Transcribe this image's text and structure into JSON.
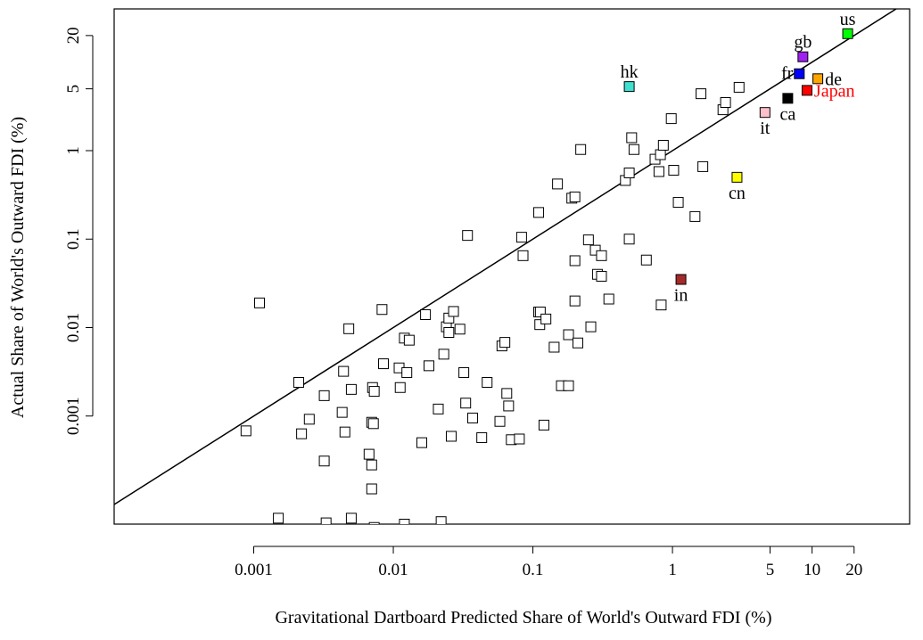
{
  "chart_data": {
    "type": "scatter",
    "title": "",
    "xlabel": "Gravitational Dartboard Predicted Share of World's Outward FDI (%)",
    "ylabel": "Actual Share of World's Outward FDI  (%)",
    "x_scale": "log",
    "y_scale": "log",
    "xlim": [
      0.0001,
      50
    ],
    "ylim": [
      6e-05,
      40
    ],
    "x_ticks": [
      {
        "value": 0.001,
        "label": "0.001"
      },
      {
        "value": 0.01,
        "label": "0.01"
      },
      {
        "value": 0.1,
        "label": "0.1"
      },
      {
        "value": 1,
        "label": "1"
      },
      {
        "value": 5,
        "label": "5"
      },
      {
        "value": 10,
        "label": "10"
      },
      {
        "value": 20,
        "label": "20"
      }
    ],
    "y_ticks": [
      {
        "value": 0.001,
        "label": "0.001"
      },
      {
        "value": 0.01,
        "label": "0.01"
      },
      {
        "value": 0.1,
        "label": "0.1"
      },
      {
        "value": 1,
        "label": "1"
      },
      {
        "value": 5,
        "label": "5"
      },
      {
        "value": 20,
        "label": "20"
      }
    ],
    "reference_line": "y = x",
    "grid": false,
    "highlighted_points": [
      {
        "label": "us",
        "x": 18.0,
        "y": 21.0,
        "color": "#00ff00",
        "label_color": "#000000",
        "label_pos": "above"
      },
      {
        "label": "gb",
        "x": 8.6,
        "y": 11.5,
        "color": "#a020f0",
        "label_color": "#000000",
        "label_pos": "above"
      },
      {
        "label": "fr",
        "x": 8.1,
        "y": 7.4,
        "color": "#0000ff",
        "label_color": "#000000",
        "label_pos": "left"
      },
      {
        "label": "de",
        "x": 11.0,
        "y": 6.5,
        "color": "#ffa500",
        "label_color": "#000000",
        "label_pos": "right"
      },
      {
        "label": "Japan",
        "x": 9.2,
        "y": 4.8,
        "color": "#ff0000",
        "label_color": "#ff0000",
        "label_pos": "right"
      },
      {
        "label": "ca",
        "x": 6.7,
        "y": 3.9,
        "color": "#000000",
        "label_color": "#000000",
        "label_pos": "below"
      },
      {
        "label": "it",
        "x": 4.6,
        "y": 2.7,
        "color": "#ffc0cb",
        "label_color": "#000000",
        "label_pos": "below"
      },
      {
        "label": "hk",
        "x": 0.49,
        "y": 5.3,
        "color": "#40e0d0",
        "label_color": "#000000",
        "label_pos": "above"
      },
      {
        "label": "cn",
        "x": 2.9,
        "y": 0.5,
        "color": "#ffff00",
        "label_color": "#000000",
        "label_pos": "below"
      },
      {
        "label": "in",
        "x": 1.15,
        "y": 0.035,
        "color": "#a52a2a",
        "label_color": "#000000",
        "label_pos": "below"
      }
    ],
    "other_points": [
      [
        0.00088,
        0.00068
      ],
      [
        0.0011,
        0.019
      ],
      [
        0.0021,
        0.0024
      ],
      [
        0.0022,
        0.00063
      ],
      [
        0.0025,
        0.00092
      ],
      [
        0.0032,
        0.0017
      ],
      [
        0.0032,
        0.00031
      ],
      [
        0.0015,
        7e-05
      ],
      [
        0.0033,
        6.2e-05
      ],
      [
        0.0043,
        0.0011
      ],
      [
        0.0044,
        0.0032
      ],
      [
        0.0045,
        0.00066
      ],
      [
        0.0048,
        0.0097
      ],
      [
        0.005,
        0.002
      ],
      [
        0.005,
        7e-05
      ],
      [
        0.0067,
        0.00037
      ],
      [
        0.007,
        0.00085
      ],
      [
        0.007,
        0.00028
      ],
      [
        0.007,
        0.00015
      ],
      [
        0.0071,
        0.0021
      ],
      [
        0.0072,
        0.00082
      ],
      [
        0.0073,
        0.0019
      ],
      [
        0.0073,
        5.5e-05
      ],
      [
        0.0083,
        0.016
      ],
      [
        0.0085,
        0.0039
      ],
      [
        0.011,
        0.0035
      ],
      [
        0.0112,
        0.0021
      ],
      [
        0.012,
        0.0076
      ],
      [
        0.012,
        6e-05
      ],
      [
        0.0125,
        0.0031
      ],
      [
        0.013,
        0.0072
      ],
      [
        0.016,
        0.0005
      ],
      [
        0.017,
        0.014
      ],
      [
        0.018,
        0.0037
      ],
      [
        0.021,
        0.0012
      ],
      [
        0.022,
        6.4e-05
      ],
      [
        0.023,
        0.005
      ],
      [
        0.024,
        0.0102
      ],
      [
        0.025,
        0.0128
      ],
      [
        0.025,
        0.0088
      ],
      [
        0.026,
        0.00059
      ],
      [
        0.027,
        0.0152
      ],
      [
        0.03,
        0.0096
      ],
      [
        0.032,
        0.0031
      ],
      [
        0.033,
        0.0014
      ],
      [
        0.034,
        0.11
      ],
      [
        0.037,
        0.00095
      ],
      [
        0.043,
        0.00057
      ],
      [
        0.047,
        0.0024
      ],
      [
        0.058,
        0.00087
      ],
      [
        0.06,
        0.0062
      ],
      [
        0.063,
        0.0068
      ],
      [
        0.065,
        0.0018
      ],
      [
        0.067,
        0.0013
      ],
      [
        0.07,
        0.00054
      ],
      [
        0.08,
        0.00055
      ],
      [
        0.083,
        0.105
      ],
      [
        0.085,
        0.065
      ],
      [
        0.11,
        0.2
      ],
      [
        0.11,
        0.015
      ],
      [
        0.112,
        0.0108
      ],
      [
        0.113,
        0.015
      ],
      [
        0.12,
        0.00079
      ],
      [
        0.124,
        0.0125
      ],
      [
        0.142,
        0.006
      ],
      [
        0.15,
        0.42
      ],
      [
        0.16,
        0.0022
      ],
      [
        0.18,
        0.0083
      ],
      [
        0.18,
        0.0022
      ],
      [
        0.19,
        0.29
      ],
      [
        0.2,
        0.3
      ],
      [
        0.2,
        0.02
      ],
      [
        0.2,
        0.057
      ],
      [
        0.21,
        0.0067
      ],
      [
        0.22,
        1.03
      ],
      [
        0.25,
        0.098
      ],
      [
        0.26,
        0.0102
      ],
      [
        0.28,
        0.075
      ],
      [
        0.29,
        0.04
      ],
      [
        0.31,
        0.038
      ],
      [
        0.31,
        0.065
      ],
      [
        0.35,
        0.021
      ],
      [
        0.46,
        0.46
      ],
      [
        0.49,
        0.1
      ],
      [
        0.49,
        0.56
      ],
      [
        0.51,
        1.4
      ],
      [
        0.53,
        1.03
      ],
      [
        0.65,
        0.058
      ],
      [
        0.75,
        0.8
      ],
      [
        0.8,
        0.58
      ],
      [
        0.82,
        0.9
      ],
      [
        0.83,
        0.018
      ],
      [
        0.86,
        1.15
      ],
      [
        0.98,
        2.3
      ],
      [
        1.02,
        0.6
      ],
      [
        1.1,
        0.26
      ],
      [
        1.45,
        0.18
      ],
      [
        1.6,
        4.4
      ],
      [
        1.65,
        0.66
      ],
      [
        2.3,
        2.9
      ],
      [
        2.4,
        3.5
      ],
      [
        3.0,
        5.2
      ]
    ]
  }
}
